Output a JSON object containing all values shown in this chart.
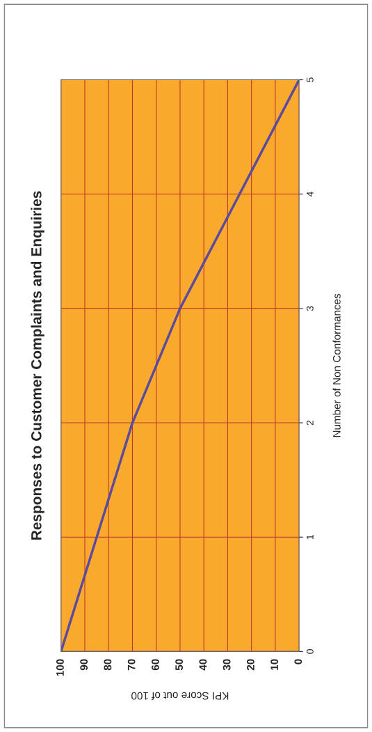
{
  "chart_data": {
    "type": "line",
    "title": "Responses to Customer Complaints and Enquiries",
    "xlabel": "KPI Score out of 100",
    "ylabel": "Number of Non Conformances",
    "x": [
      100,
      85,
      70,
      50,
      25,
      0
    ],
    "series": [
      {
        "color": "#5b4a9e",
        "values": [
          0,
          1,
          2,
          3,
          4,
          5
        ]
      }
    ],
    "xlim": [
      100,
      0
    ],
    "xticks": [
      100,
      90,
      80,
      70,
      60,
      50,
      40,
      30,
      20,
      10,
      0
    ],
    "ylim": [
      0,
      5
    ],
    "yticks": [
      0,
      1,
      2,
      3,
      4,
      5
    ],
    "grid": true,
    "marker": "none",
    "line_style": "solid"
  }
}
